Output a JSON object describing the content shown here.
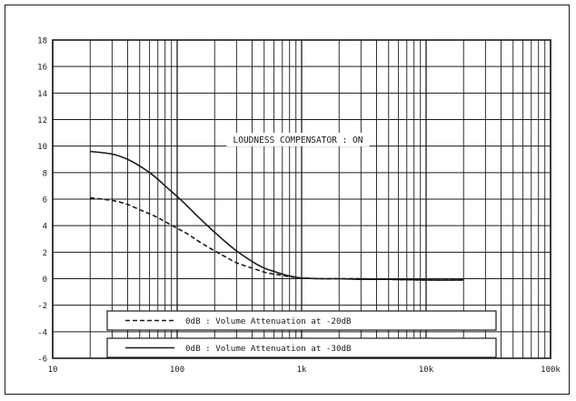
{
  "chart_data": {
    "type": "line",
    "title": "LOUDNESS COMPENSATOR : ON",
    "xlabel": "",
    "ylabel": "",
    "xscale": "log",
    "xlim": [
      10,
      100000
    ],
    "ylim": [
      -6,
      18
    ],
    "grid": true,
    "x_tick_labels": [
      {
        "value": 10,
        "label": "10"
      },
      {
        "value": 100,
        "label": "100"
      },
      {
        "value": 1000,
        "label": "1k"
      },
      {
        "value": 10000,
        "label": "10k"
      },
      {
        "value": 100000,
        "label": "100k"
      }
    ],
    "y_ticks": [
      18,
      16,
      14,
      12,
      10,
      8,
      6,
      4,
      2,
      0,
      -2,
      -4,
      -6
    ],
    "series": [
      {
        "name": "0dB : Volume Attenuation at -20dB",
        "style": "dashed",
        "color": "#1a1a1a",
        "x": [
          20,
          30,
          40,
          50,
          60,
          70,
          80,
          100,
          120,
          150,
          200,
          250,
          300,
          400,
          500,
          600,
          700,
          800,
          900,
          1000,
          1500,
          2000,
          3000,
          5000,
          10000,
          20000
        ],
        "y": [
          6.1,
          5.9,
          5.6,
          5.2,
          4.9,
          4.6,
          4.3,
          3.8,
          3.4,
          2.8,
          2.1,
          1.6,
          1.2,
          0.8,
          0.5,
          0.35,
          0.25,
          0.15,
          0.1,
          0.05,
          0,
          0,
          0,
          -0.05,
          -0.1,
          -0.1
        ]
      },
      {
        "name": "0dB : Volume Attenuation at -30dB",
        "style": "solid",
        "color": "#1a1a1a",
        "x": [
          20,
          30,
          40,
          50,
          60,
          70,
          80,
          100,
          120,
          150,
          200,
          250,
          300,
          400,
          500,
          600,
          700,
          800,
          900,
          1000,
          1500,
          2000,
          3000,
          5000,
          10000,
          20000
        ],
        "y": [
          9.6,
          9.4,
          9.0,
          8.5,
          8.0,
          7.5,
          7.0,
          6.2,
          5.5,
          4.6,
          3.5,
          2.7,
          2.1,
          1.3,
          0.8,
          0.55,
          0.35,
          0.2,
          0.12,
          0.05,
          0,
          0,
          -0.05,
          -0.05,
          -0.1,
          -0.1
        ]
      }
    ]
  },
  "legend": {
    "entries": [
      {
        "style": "dashed",
        "label": "0dB : Volume Attenuation at -20dB"
      },
      {
        "style": "solid",
        "label": "0dB : Volume Attenuation at -30dB"
      }
    ]
  },
  "colors": {
    "grid": "#1a1a1a",
    "curve": "#1a1a1a",
    "background": "#ffffff"
  }
}
